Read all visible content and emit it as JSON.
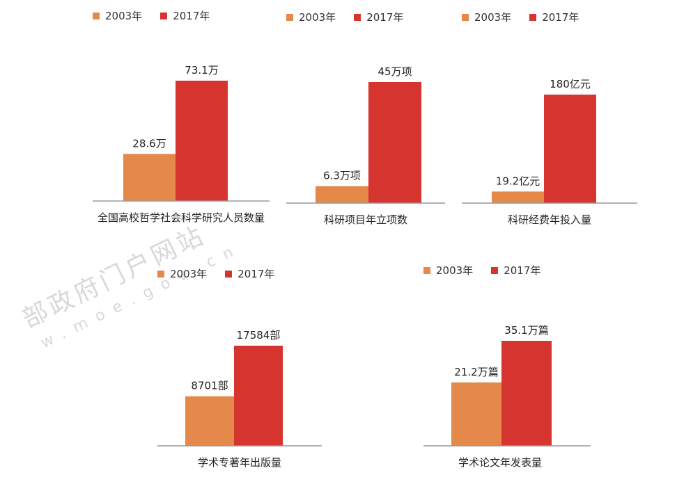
{
  "colors": {
    "y2003": "#e4894a",
    "y2017": "#d5342f",
    "axis": "#999999"
  },
  "watermark": {
    "cn": "部政府门户网站",
    "url": "w.moe.gov.cn"
  },
  "chart_data": [
    {
      "type": "bar",
      "series": [
        "2003年",
        "2017年"
      ],
      "values": [
        28.6,
        73.1
      ],
      "labels": [
        "28.6万",
        "73.1万"
      ],
      "caption": "全国高校哲学社会科学研究人员数量"
    },
    {
      "type": "bar",
      "series": [
        "2003年",
        "2017年"
      ],
      "values": [
        6.3,
        45
      ],
      "labels": [
        "6.3万项",
        "45万项"
      ],
      "caption": "科研项目年立项数"
    },
    {
      "type": "bar",
      "series": [
        "2003年",
        "2017年"
      ],
      "values": [
        19.2,
        180
      ],
      "labels": [
        "19.2亿元",
        "180亿元"
      ],
      "caption": "科研经费年投入量"
    },
    {
      "type": "bar",
      "series": [
        "2003年",
        "2017年"
      ],
      "values": [
        8701,
        17584
      ],
      "labels": [
        "8701部",
        "17584部"
      ],
      "caption": "学术专著年出版量"
    },
    {
      "type": "bar",
      "series": [
        "2003年",
        "2017年"
      ],
      "values": [
        21.2,
        35.1
      ],
      "labels": [
        "21.2万篇",
        "35.1万篇"
      ],
      "caption": "学术论文年发表量"
    }
  ]
}
